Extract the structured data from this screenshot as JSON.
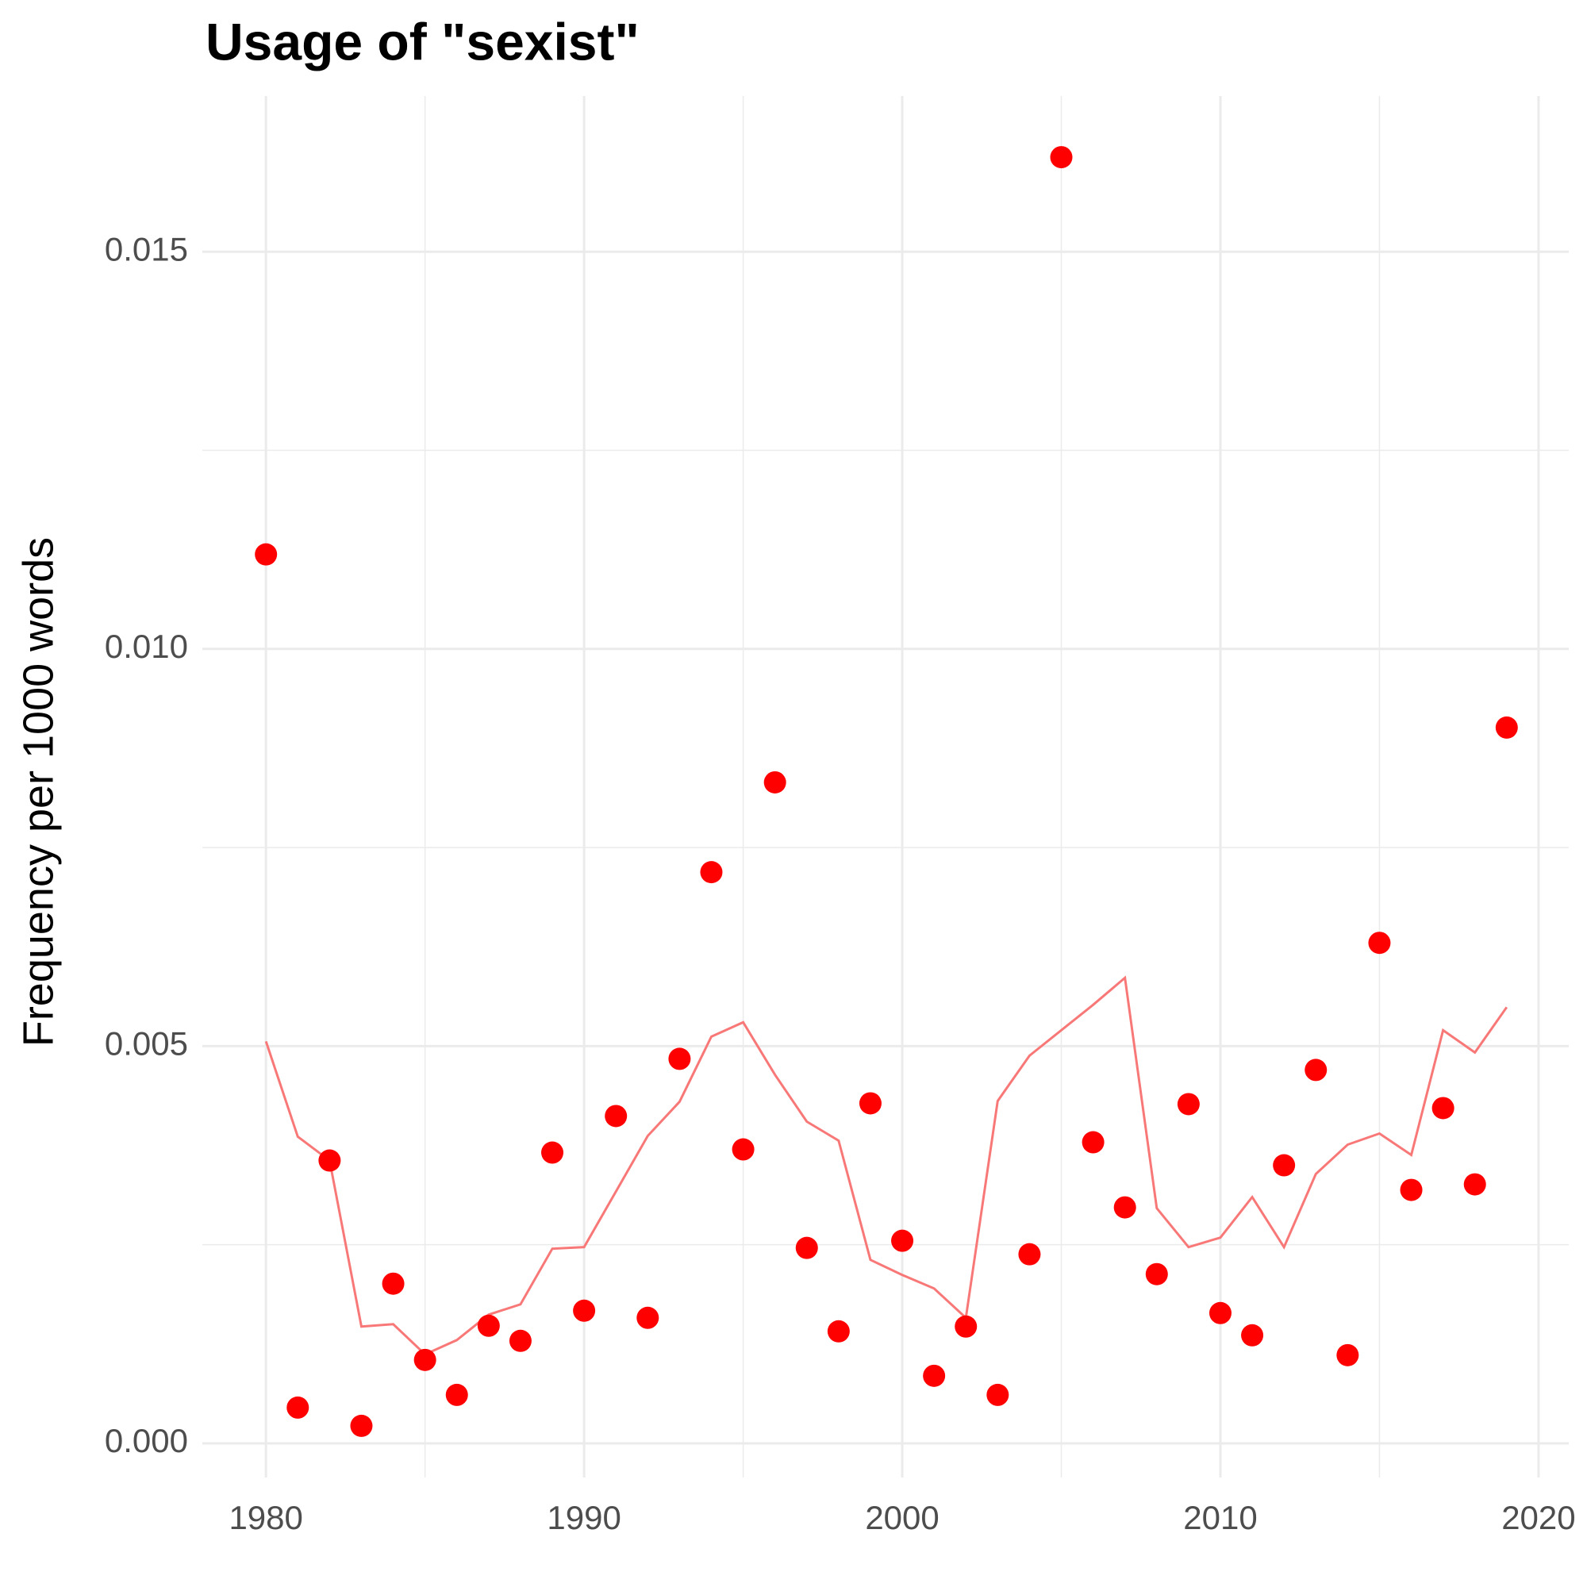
{
  "chart_data": {
    "type": "line",
    "title": "Usage of \"sexist\"",
    "y_label": "Frequency per 1000 words",
    "x": [
      1980,
      1981,
      1982,
      1983,
      1984,
      1985,
      1986,
      1987,
      1988,
      1989,
      1990,
      1991,
      1992,
      1993,
      1994,
      1995,
      1996,
      1997,
      1998,
      1999,
      2000,
      2001,
      2002,
      2003,
      2004,
      2005,
      2006,
      2007,
      2008,
      2009,
      2010,
      2011,
      2012,
      2013,
      2014,
      2015,
      2016,
      2017,
      2018,
      2019
    ],
    "series": [
      {
        "style": "points",
        "color": "#ff0000",
        "values": [
          0.01119,
          0.00045,
          0.00356,
          0.00022,
          0.00201,
          0.00105,
          0.00061,
          0.00148,
          0.00129,
          0.00366,
          0.00167,
          0.00412,
          0.00158,
          0.00484,
          0.00719,
          0.0037,
          0.00832,
          0.00246,
          0.00141,
          0.00428,
          0.00255,
          0.00085,
          0.00147,
          0.00061,
          0.00238,
          0.01619,
          0.00379,
          0.00297,
          0.00213,
          0.00427,
          0.00164,
          0.00136,
          0.0035,
          0.0047,
          0.00111,
          0.0063,
          0.00319,
          0.00422,
          0.00326,
          0.00901
        ]
      },
      {
        "style": "line",
        "color": "#f87878",
        "values": [
          0.00506,
          0.00386,
          0.00356,
          0.00147,
          0.0015,
          0.00112,
          0.0013,
          0.00162,
          0.00175,
          0.00245,
          0.00247,
          0.00317,
          0.00387,
          0.0043,
          0.00512,
          0.0053,
          0.00464,
          0.00405,
          0.00381,
          0.00231,
          0.00212,
          0.00195,
          0.00158,
          0.00431,
          0.00488,
          0.0052,
          0.00552,
          0.00586,
          0.00296,
          0.00247,
          0.00259,
          0.0031,
          0.00247,
          0.00339,
          0.00376,
          0.0039,
          0.00363,
          0.0052,
          0.00492,
          0.00549
        ]
      }
    ],
    "xlim": [
      1978.0,
      2020.95
    ],
    "xticks": [
      1980,
      1990,
      2000,
      2010,
      2020
    ],
    "x_minor_ticks": [
      1985,
      1995,
      2005,
      2015
    ],
    "ylim": [
      -0.00043,
      0.01696
    ],
    "yticks": [
      {
        "value": 0,
        "label": "0.000"
      },
      {
        "value": 0.005,
        "label": "0.005"
      },
      {
        "value": 0.01,
        "label": "0.010"
      },
      {
        "value": 0.015,
        "label": "0.015"
      }
    ],
    "y_minor_ticks": [
      0.0025,
      0.0075,
      0.0125
    ],
    "grid": true
  }
}
